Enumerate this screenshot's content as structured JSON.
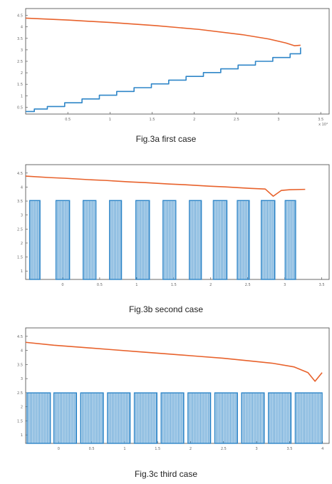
{
  "colors": {
    "series_orange": "#e8622c",
    "series_blue": "#2f86c8",
    "axis": "#444444"
  },
  "chart_data": [
    {
      "type": "line",
      "caption": "Fig.3a first case",
      "xlim": [
        0,
        3.5
      ],
      "ylim": [
        0.5,
        4.7
      ],
      "x_ticks": [
        "0.5",
        "1",
        "1.5",
        "2",
        "2.5",
        "3",
        "3.5"
      ],
      "x_exponent": "x 10⁴",
      "y_ticks": [
        "4.5",
        "4",
        "3.5",
        "3",
        "2.5",
        "2",
        "1.5",
        "1",
        "0.5"
      ],
      "series": [
        {
          "color": "#e8622c",
          "style": "smooth",
          "x": [
            0,
            0.5,
            1.0,
            1.5,
            2.0,
            2.5,
            2.8,
            3.0,
            3.1,
            3.17
          ],
          "y": [
            4.32,
            4.24,
            4.14,
            4.02,
            3.87,
            3.66,
            3.49,
            3.33,
            3.22,
            3.24
          ]
        },
        {
          "color": "#2f86c8",
          "style": "staircase",
          "x": [
            0,
            0.1,
            0.25,
            0.45,
            0.65,
            0.85,
            1.05,
            1.25,
            1.45,
            1.65,
            1.85,
            2.05,
            2.25,
            2.45,
            2.65,
            2.85,
            3.05,
            3.17
          ],
          "y": [
            0.6,
            0.7,
            0.8,
            0.95,
            1.1,
            1.25,
            1.4,
            1.55,
            1.7,
            1.85,
            2.0,
            2.15,
            2.3,
            2.45,
            2.6,
            2.75,
            2.9,
            3.15
          ]
        }
      ]
    },
    {
      "type": "line",
      "caption": "Fig.3b second case",
      "xlim": [
        0,
        3.8
      ],
      "ylim": [
        -2.5,
        5.5
      ],
      "x_ticks": [
        "0",
        "0.5",
        "1",
        "1.5",
        "2",
        "2.5",
        "3",
        "3.5"
      ],
      "y_ticks": [
        "4.5",
        "4",
        "3.5",
        "3",
        "2.5",
        "2",
        "1.5",
        "1"
      ],
      "series": [
        {
          "color": "#e8622c",
          "style": "line",
          "x": [
            0,
            0.3,
            0.5,
            0.8,
            1.0,
            1.3,
            1.5,
            1.8,
            2.0,
            2.3,
            2.5,
            2.8,
            3.0,
            3.1,
            3.2,
            3.3,
            3.5
          ],
          "y": [
            4.7,
            4.6,
            4.55,
            4.45,
            4.4,
            4.3,
            4.25,
            4.15,
            4.1,
            4.0,
            3.95,
            3.85,
            3.8,
            3.3,
            3.7,
            3.75,
            3.78
          ]
        },
        {
          "color": "#2f86c8",
          "style": "pulses",
          "high": 3.0,
          "low": -2.5,
          "pulses": [
            [
              0.05,
              0.18
            ],
            [
              0.38,
              0.55
            ],
            [
              0.72,
              0.88
            ],
            [
              1.05,
              1.2
            ],
            [
              1.38,
              1.55
            ],
            [
              1.72,
              1.88
            ],
            [
              2.05,
              2.2
            ],
            [
              2.35,
              2.52
            ],
            [
              2.65,
              2.8
            ],
            [
              2.95,
              3.12
            ],
            [
              3.25,
              3.38
            ]
          ]
        }
      ]
    },
    {
      "type": "line",
      "caption": "Fig.3c third case",
      "xlim": [
        0,
        4.3
      ],
      "ylim": [
        -2.5,
        5.5
      ],
      "x_ticks": [
        "0",
        "0.5",
        "1",
        "1.5",
        "2",
        "2.5",
        "3",
        "3.5",
        "4"
      ],
      "y_ticks": [
        "4.5",
        "4",
        "3.5",
        "3",
        "2.5",
        "2",
        "1.5",
        "1"
      ],
      "series": [
        {
          "color": "#e8622c",
          "style": "line",
          "x": [
            0,
            0.4,
            0.8,
            1.2,
            1.6,
            2.0,
            2.4,
            2.8,
            3.2,
            3.5,
            3.8,
            4.0,
            4.1,
            4.2
          ],
          "y": [
            4.5,
            4.3,
            4.15,
            4.0,
            3.85,
            3.7,
            3.55,
            3.4,
            3.2,
            3.05,
            2.8,
            2.4,
            1.8,
            2.4
          ]
        },
        {
          "color": "#2f86c8",
          "style": "pulses",
          "high": 1.0,
          "low": -2.5,
          "pulses": [
            [
              0.02,
              0.35
            ],
            [
              0.4,
              0.72
            ],
            [
              0.78,
              1.1
            ],
            [
              1.16,
              1.48
            ],
            [
              1.54,
              1.86
            ],
            [
              1.92,
              2.24
            ],
            [
              2.3,
              2.62
            ],
            [
              2.68,
              3.0
            ],
            [
              3.06,
              3.38
            ],
            [
              3.44,
              3.76
            ],
            [
              3.82,
              4.2
            ]
          ]
        }
      ]
    }
  ]
}
